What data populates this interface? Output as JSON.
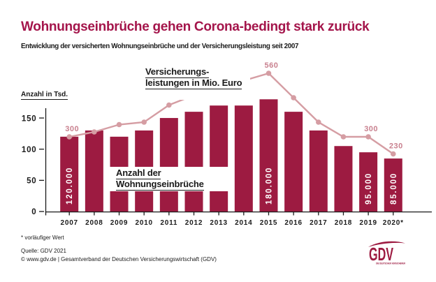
{
  "header": {
    "title": "Wohnungseinbrüche gehen Corona-bedingt stark zurück",
    "subtitle": "Entwicklung der versicherten Wohnungseinbrüche und der Versicherungsleistung seit 2007"
  },
  "chart_data": {
    "type": "bar",
    "categories": [
      "2007",
      "2008",
      "2009",
      "2010",
      "2011",
      "2012",
      "2013",
      "2014",
      "2015",
      "2016",
      "2017",
      "2018",
      "2019",
      "2020*"
    ],
    "ylabel": "Anzahl in Tsd.",
    "yticks": [
      0,
      50,
      100,
      150
    ],
    "ylim": [
      0,
      190
    ],
    "grid": false,
    "series": [
      {
        "name": "Anzahl der Wohnungseinbrüche",
        "type": "bar",
        "unit": "Tsd.",
        "values": [
          120,
          130,
          120,
          130,
          150,
          160,
          170,
          170,
          180,
          160,
          130,
          105,
          95,
          85
        ],
        "value_labels": {
          "0": "120.000",
          "8": "180.000",
          "12": "95.000",
          "13": "85.000"
        }
      },
      {
        "name": "Versicherungsleistungen in Mio. Euro",
        "type": "line",
        "unit": "Mio. Euro",
        "values": [
          300,
          320,
          350,
          360,
          430,
          470,
          500,
          530,
          560,
          460,
          360,
          300,
          300,
          230
        ],
        "value_labels": {
          "0": "300",
          "8": "560",
          "12": "300",
          "13": "230"
        }
      }
    ],
    "annotations": {
      "line_series_label": {
        "line1": "Versicherungs-",
        "line2": "leistungen in Mio. Euro"
      },
      "bar_series_label": {
        "line1": "Anzahl der",
        "line2": "Wohnungseinbrüche"
      }
    }
  },
  "footnote": "* vorläufiger Wert",
  "source": {
    "line1": "Quelle: GDV 2021",
    "line2": "© www.gdv.de | Gesamtverband der Deutschen Versicherungswirtschaft (GDV)"
  },
  "logo": {
    "text": "GDV",
    "tagline": "DIE DEUTSCHEN VERSICHERER"
  },
  "colors": {
    "brand_dark": "#9d1b41",
    "title_red": "#a4154b",
    "line_pink": "#d59da3",
    "value_label_pink": "#c9818f",
    "text": "#1a1a1a"
  }
}
